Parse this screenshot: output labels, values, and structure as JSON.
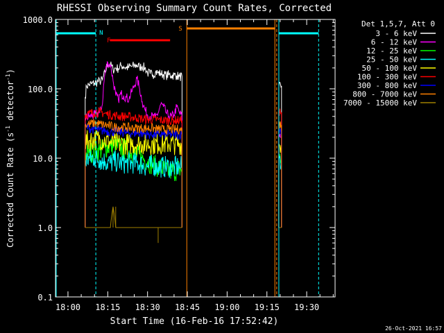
{
  "chart_data": {
    "type": "line",
    "title": "RHESSI Observing Summary Count Rates, Corrected",
    "xlabel": "Start Time (16-Feb-16 17:52:42)",
    "ylabel": "Corrected Count Rate (s⁻¹ detector⁻¹)",
    "ylabel_main": "Corrected Count Rate (s",
    "ylabel_sup1": "-1",
    "ylabel_mid": " detector",
    "ylabel_sup2": "-1",
    "ylabel_end": ")",
    "yscale": "log",
    "ylim": [
      0.1,
      1000
    ],
    "xlim_minutes": [
      -4.7,
      100.7
    ],
    "x_ticks": [
      {
        "label": "18:00",
        "m": 0
      },
      {
        "label": "18:15",
        "m": 15
      },
      {
        "label": "18:30",
        "m": 30
      },
      {
        "label": "18:45",
        "m": 45
      },
      {
        "label": "19:00",
        "m": 60
      },
      {
        "label": "19:15",
        "m": 75
      },
      {
        "label": "19:30",
        "m": 90
      }
    ],
    "y_ticks": [
      {
        "label": "0.1",
        "v": 0.1
      },
      {
        "label": "1.0",
        "v": 1
      },
      {
        "label": "10.0",
        "v": 10
      },
      {
        "label": "100.0",
        "v": 100
      },
      {
        "label": "1000.0",
        "v": 1000
      }
    ],
    "legend_title": "Det 1,5,7, Att 0",
    "legend_placement": "right",
    "timestamp": "26-Oct-2021 16:57",
    "series": [
      {
        "name": "3 - 6 keV",
        "color": "#ffffff",
        "x": [
          6.5,
          7,
          8,
          9,
          10,
          11,
          12,
          13,
          14,
          15,
          16,
          17,
          18,
          19,
          20,
          21,
          22,
          23,
          24,
          25,
          26,
          27,
          28,
          29,
          30,
          31,
          32,
          33,
          34,
          35,
          36,
          37,
          38,
          39,
          40,
          41,
          42,
          43,
          79.5,
          80.5
        ],
        "y": [
          75,
          110,
          115,
          118,
          120,
          125,
          128,
          135,
          170,
          230,
          220,
          190,
          200,
          195,
          215,
          210,
          200,
          205,
          210,
          215,
          220,
          205,
          210,
          200,
          170,
          165,
          160,
          175,
          170,
          165,
          160,
          155,
          160,
          155,
          158,
          155,
          150,
          150,
          105,
          110
        ]
      },
      {
        "name": "6 - 12 keV",
        "color": "#ff00ff",
        "x": [
          6.5,
          8,
          10,
          12,
          13,
          14,
          15,
          16,
          17,
          18,
          19,
          20,
          21,
          22,
          23,
          24,
          25,
          26,
          27,
          28,
          29,
          30,
          31,
          32,
          33,
          34,
          35,
          36,
          37,
          38,
          39,
          40,
          41,
          42,
          43,
          79.5,
          80.5
        ],
        "y": [
          38,
          40,
          42,
          45,
          60,
          170,
          240,
          220,
          130,
          80,
          70,
          85,
          80,
          75,
          70,
          90,
          110,
          140,
          100,
          65,
          50,
          42,
          40,
          40,
          38,
          45,
          60,
          55,
          45,
          40,
          40,
          42,
          55,
          45,
          40,
          22,
          20
        ]
      },
      {
        "name": "12 - 25 keV",
        "color": "#00ff00",
        "x": [
          6.5,
          8,
          10,
          12,
          14,
          16,
          18,
          20,
          22,
          24,
          26,
          28,
          30,
          32,
          34,
          36,
          38,
          40,
          42,
          43,
          79.5,
          80.5
        ],
        "y": [
          11,
          12,
          12.5,
          13,
          14,
          15,
          15,
          14,
          13,
          12,
          11,
          10,
          9,
          8,
          7.5,
          7,
          6.5,
          6.5,
          7,
          7,
          10,
          9
        ]
      },
      {
        "name": "25 - 50 keV",
        "color": "#00ffff",
        "x": [
          6.5,
          8,
          10,
          12,
          14,
          16,
          18,
          20,
          22,
          24,
          26,
          28,
          30,
          32,
          34,
          36,
          38,
          40,
          42,
          43,
          79.5,
          80.5
        ],
        "y": [
          9,
          10,
          10,
          9.5,
          9,
          8.5,
          9,
          8.5,
          8.5,
          8.5,
          8.5,
          8,
          7.5,
          8,
          7.5,
          7.5,
          7.5,
          7.5,
          7.5,
          7.5,
          10,
          9
        ]
      },
      {
        "name": "50 - 100 keV",
        "color": "#ffff00",
        "x": [
          6.5,
          8,
          10,
          12,
          14,
          16,
          18,
          20,
          22,
          24,
          26,
          28,
          30,
          32,
          34,
          36,
          38,
          40,
          42,
          43,
          79.5,
          80.5
        ],
        "y": [
          17,
          18,
          18.5,
          19,
          18,
          17,
          16,
          16,
          16,
          16,
          16,
          16,
          16,
          16,
          16,
          16,
          16,
          16,
          16,
          16,
          16,
          15
        ]
      },
      {
        "name": "100 - 300 keV",
        "color": "#ff0000",
        "x": [
          6.5,
          8,
          10,
          12,
          14,
          16,
          18,
          20,
          22,
          24,
          26,
          28,
          30,
          32,
          34,
          36,
          38,
          40,
          42,
          43,
          79.5,
          80.5
        ],
        "y": [
          42,
          44,
          45,
          46,
          44,
          42,
          41,
          40,
          40,
          39,
          38,
          37,
          36,
          36,
          36,
          35,
          35,
          35,
          35,
          35,
          48,
          45
        ]
      },
      {
        "name": "300 - 800 keV",
        "color": "#0000ff",
        "x": [
          6.5,
          8,
          10,
          12,
          14,
          16,
          18,
          20,
          22,
          24,
          26,
          28,
          30,
          32,
          34,
          36,
          38,
          40,
          42,
          43,
          79.5,
          80.5
        ],
        "y": [
          28,
          27,
          26,
          25,
          25,
          24,
          24,
          24,
          23,
          23,
          23,
          23,
          22,
          22,
          22,
          22,
          22,
          22,
          22,
          22,
          26,
          25
        ]
      },
      {
        "name": "800 - 7000 keV",
        "color": "#ff8000",
        "x": [
          6.5,
          8,
          10,
          12,
          14,
          16,
          18,
          20,
          22,
          24,
          26,
          28,
          30,
          32,
          34,
          36,
          38,
          40,
          42,
          43,
          79.5,
          80.5
        ],
        "y": [
          30,
          31,
          32,
          31,
          30,
          29,
          28,
          28,
          28,
          27,
          27,
          27,
          27,
          27,
          26,
          26,
          26,
          26,
          26,
          26,
          32,
          30
        ]
      },
      {
        "name": "7000 - 15000 keV",
        "color": "#a08000",
        "x": [
          6.5,
          16,
          17,
          18,
          19,
          20,
          21,
          22,
          23,
          24,
          25,
          26,
          27,
          28,
          29,
          30,
          31,
          32,
          33,
          34,
          35,
          36,
          37,
          38,
          39,
          40,
          41,
          42,
          43,
          79.5,
          80.5
        ],
        "y": [
          1,
          1,
          2,
          1,
          1,
          1,
          1,
          1,
          1,
          1,
          1,
          1,
          1,
          1,
          1,
          1,
          1,
          1,
          1,
          1,
          1,
          1,
          1,
          1,
          1,
          1,
          1,
          1,
          1,
          1,
          1
        ]
      }
    ],
    "annotations": [
      {
        "label": "N",
        "color": "#00ffff"
      },
      {
        "label": "F",
        "color": "#ff0000"
      },
      {
        "label": "S",
        "color": "#ff8000"
      }
    ],
    "night_segments": [
      [
        -4.7,
        10.5
      ],
      [
        79.5,
        94.5
      ]
    ],
    "flare_segment": [
      15.8,
      38.5
    ],
    "saa_segment": [
      44.8,
      78.0
    ],
    "saa_boundaries": [
      44.8,
      78.0
    ],
    "night_boundaries": [
      79.5
    ],
    "dashed_verticals": [
      10.5,
      78.7,
      94.5
    ],
    "data_gap_boundaries": [
      6.5,
      43.2,
      79.5,
      80.5
    ]
  }
}
